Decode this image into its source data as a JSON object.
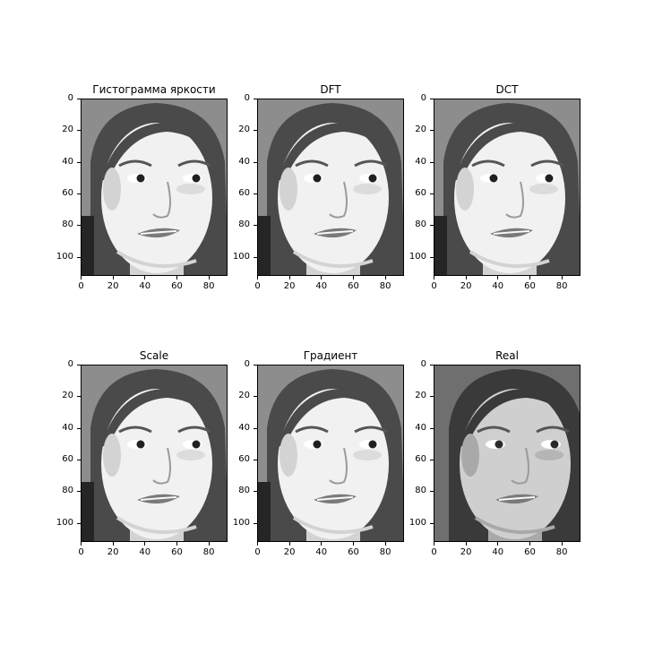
{
  "panels": [
    {
      "title": "Гистограмма яркости",
      "variant": "equalized"
    },
    {
      "title": "DFT",
      "variant": "equalized"
    },
    {
      "title": "DCT",
      "variant": "equalized"
    },
    {
      "title": "Scale",
      "variant": "equalized"
    },
    {
      "title": "Градиент",
      "variant": "equalized"
    },
    {
      "title": "Real",
      "variant": "real"
    }
  ],
  "y_ticks": [
    "0",
    "20",
    "40",
    "60",
    "80",
    "100"
  ],
  "x_ticks": [
    "0",
    "20",
    "40",
    "60",
    "80"
  ],
  "image_rows": 112,
  "image_cols": 92
}
